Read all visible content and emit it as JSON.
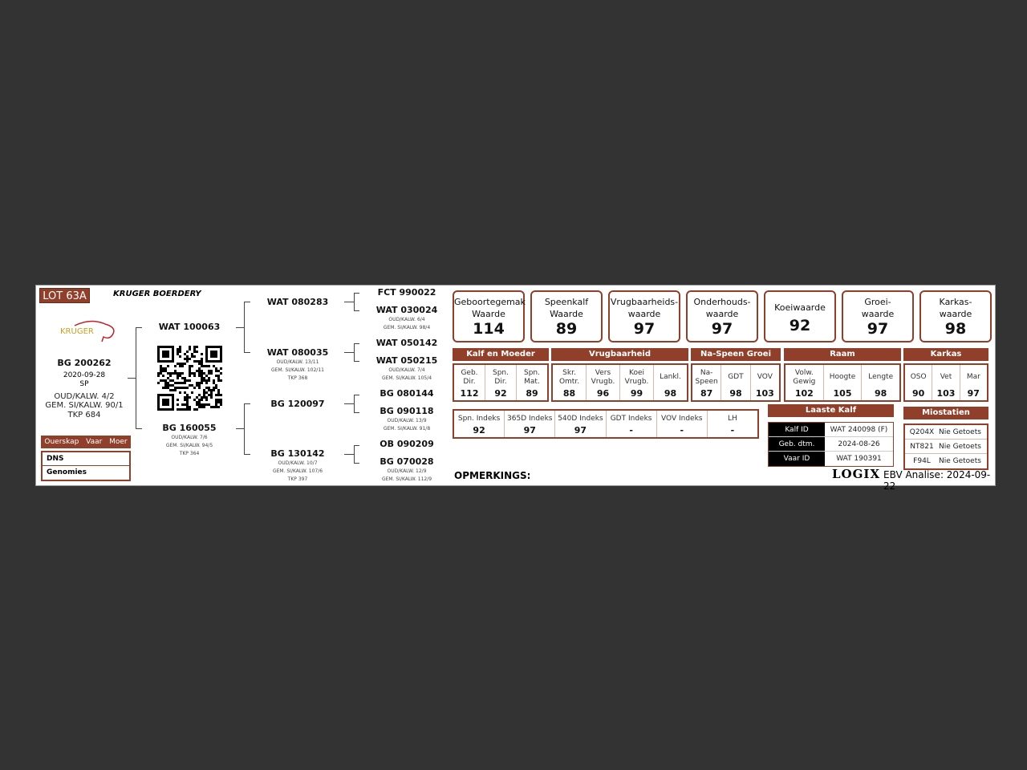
{
  "lot": "LOT 63A",
  "farm": "KRUGER BOERDERY",
  "logo": "KRUGER",
  "animal": {
    "id": "BG 200262",
    "date": "2020-09-28",
    "tag": "SP",
    "oud": "OUD/KALW. 4/2",
    "gem": "GEM. SI/KALW. 90/1",
    "tkp": "TKP 684"
  },
  "parentage": {
    "header": [
      "Ouerskap",
      "Vaar",
      "Moer"
    ],
    "rows": [
      "DNS",
      "Genomies"
    ]
  },
  "sire": {
    "id": "WAT 100063"
  },
  "dam": {
    "id": "BG 160055",
    "oud": "OUD/KALW. 7/6",
    "gem": "GEM. SI/KALW. 94/5",
    "tkp": "TKP 364"
  },
  "gen2": [
    {
      "id": "WAT 080283"
    },
    {
      "id": "WAT 080035",
      "oud": "OUD/KALW. 13/11",
      "gem": "GEM. SI/KALW. 102/11",
      "tkp": "TKP 368"
    },
    {
      "id": "BG 120097"
    },
    {
      "id": "BG 130142",
      "oud": "OUD/KALW. 10/7",
      "gem": "GEM. SI/KALW. 107/6",
      "tkp": "TKP 397"
    }
  ],
  "gen3": [
    {
      "id": "FCT 990022"
    },
    {
      "id": "WAT 030024",
      "oud": "OUD/KALW. 6/4",
      "gem": "GEM. SI/KALW. 98/4"
    },
    {
      "id": "WAT 050142"
    },
    {
      "id": "WAT 050215",
      "oud": "OUD/KALW. 7/4",
      "gem": "GEM. SI/KALW. 105/4"
    },
    {
      "id": "BG 080144"
    },
    {
      "id": "BG 090118",
      "oud": "OUD/KALW. 13/9",
      "gem": "GEM. SI/KALW. 91/8"
    },
    {
      "id": "OB 090209"
    },
    {
      "id": "BG 070028",
      "oud": "OUD/KALW. 12/9",
      "gem": "GEM. SI/KALW. 112/9"
    }
  ],
  "top_values": [
    {
      "l1": "Geboortegemak",
      "l2": "Waarde",
      "v": "114"
    },
    {
      "l1": "Speenkalf",
      "l2": "Waarde",
      "v": "89"
    },
    {
      "l1": "Vrugbaarheids-",
      "l2": "waarde",
      "v": "97"
    },
    {
      "l1": "Onderhouds-",
      "l2": "waarde",
      "v": "97"
    },
    {
      "l1": "Koeiwaarde",
      "l2": "",
      "v": "92"
    },
    {
      "l1": "Groei-",
      "l2": "waarde",
      "v": "97"
    },
    {
      "l1": "Karkas-",
      "l2": "waarde",
      "v": "98"
    }
  ],
  "groups": [
    {
      "label": "Kalf en Moeder",
      "cells": [
        {
          "l": "Geb. Dir.",
          "v": "112"
        },
        {
          "l": "Spn. Dir.",
          "v": "92"
        },
        {
          "l": "Spn. Mat.",
          "v": "89"
        }
      ]
    },
    {
      "label": "Vrugbaarheid",
      "cells": [
        {
          "l": "Skr. Omtr.",
          "v": "88"
        },
        {
          "l": "Vers Vrugb.",
          "v": "96"
        },
        {
          "l": "Koei Vrugb.",
          "v": "99"
        },
        {
          "l": "Lankl.",
          "v": "98"
        }
      ]
    },
    {
      "label": "Na-Speen Groei",
      "cells": [
        {
          "l": "Na- Speen",
          "v": "87"
        },
        {
          "l": "GDT",
          "v": "98"
        },
        {
          "l": "VOV",
          "v": "103"
        }
      ]
    },
    {
      "label": "Raam",
      "cells": [
        {
          "l": "Volw. Gewig",
          "v": "102"
        },
        {
          "l": "Hoogte",
          "v": "105"
        },
        {
          "l": "Lengte",
          "v": "98"
        }
      ]
    },
    {
      "label": "Karkas",
      "cells": [
        {
          "l": "OSO",
          "v": "90"
        },
        {
          "l": "Vet",
          "v": "103"
        },
        {
          "l": "Mar",
          "v": "97"
        }
      ]
    }
  ],
  "indexes": [
    {
      "l": "Spn. Indeks",
      "v": "92"
    },
    {
      "l": "365D Indeks",
      "v": "97"
    },
    {
      "l": "540D Indeks",
      "v": "97"
    },
    {
      "l": "GDT Indeks",
      "v": "-"
    },
    {
      "l": "VOV Indeks",
      "v": "-"
    },
    {
      "l": "LH",
      "v": "-"
    }
  ],
  "last_calf": {
    "title": "Laaste Kalf",
    "rows": [
      {
        "k": "Kalf ID",
        "v": "WAT 240098 (F)"
      },
      {
        "k": "Geb. dtm.",
        "v": "2024-08-26"
      },
      {
        "k": "Vaar ID",
        "v": "WAT 190391"
      }
    ]
  },
  "myostatin": {
    "title": "Miostatien",
    "rows": [
      {
        "k": "Q204X",
        "v": "Nie Getoets"
      },
      {
        "k": "NT821",
        "v": "Nie Getoets"
      },
      {
        "k": "F94L",
        "v": "Nie Getoets"
      }
    ]
  },
  "remarks": "OPMERKINGS:",
  "brand": "LOGIX",
  "analysis": "EBV Analise: 2024-09-22",
  "colors": {
    "accent": "#8f3f2a",
    "background": "#333333"
  }
}
